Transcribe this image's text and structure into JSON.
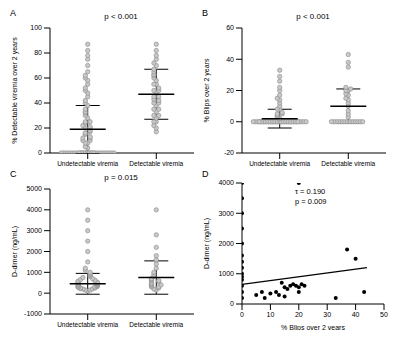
{
  "chart_data": [
    {
      "type": "scatter",
      "panel": "A",
      "title": "p < 0.001",
      "categories": [
        "Undetectable viremia",
        "Detectable viremia"
      ],
      "y_label": "% Detectable viremia over 2 years",
      "ylim": [
        0,
        100
      ],
      "yticks": [
        0,
        20,
        40,
        60,
        80,
        100
      ],
      "color": "#c8c8c8",
      "values": [
        [
          0,
          0,
          0,
          0,
          0,
          0,
          0,
          0,
          0,
          0,
          0,
          0,
          0,
          0,
          0,
          0,
          0,
          0,
          0,
          0,
          0,
          0,
          0,
          0,
          0,
          0,
          0,
          0,
          0,
          0,
          4,
          5,
          8,
          8,
          10,
          10,
          12,
          12,
          13,
          15,
          16,
          17,
          18,
          20,
          20,
          21,
          22,
          24,
          25,
          25,
          28,
          30,
          32,
          33,
          35,
          38,
          40,
          42,
          45,
          48,
          50,
          52,
          55,
          58,
          60,
          62,
          65,
          70,
          75,
          78,
          82,
          87
        ],
        [
          17,
          20,
          22,
          25,
          25,
          28,
          30,
          30,
          33,
          35,
          35,
          38,
          40,
          40,
          42,
          43,
          45,
          45,
          48,
          50,
          50,
          52,
          55,
          55,
          58,
          60,
          62,
          63,
          65,
          67,
          70,
          72,
          75,
          78,
          82,
          87
        ]
      ],
      "mean": [
        19,
        47
      ],
      "sd": [
        19,
        20
      ]
    },
    {
      "type": "scatter",
      "panel": "B",
      "title": "p < 0.001",
      "categories": [
        "Undetectable viremia",
        "Detectable viremia"
      ],
      "y_label": "% Blips over 2 years",
      "ylim": [
        -20,
        60
      ],
      "yticks": [
        -20,
        0,
        20,
        40,
        60
      ],
      "color": "#c8c8c8",
      "values": [
        [
          0,
          0,
          0,
          0,
          0,
          0,
          0,
          0,
          0,
          0,
          0,
          0,
          0,
          0,
          0,
          0,
          0,
          0,
          0,
          0,
          0,
          0,
          0,
          0,
          0,
          0,
          0,
          0,
          0,
          0,
          0,
          0,
          0,
          0,
          0,
          0,
          0,
          0,
          0,
          0,
          2,
          3,
          4,
          5,
          5,
          6,
          8,
          8,
          10,
          12,
          14,
          15,
          17,
          20,
          22,
          26,
          29,
          33
        ],
        [
          0,
          0,
          0,
          0,
          0,
          0,
          0,
          0,
          0,
          0,
          0,
          0,
          0,
          0,
          3,
          5,
          7,
          10,
          12,
          14,
          15,
          17,
          18,
          20,
          20,
          21,
          22,
          35,
          38,
          43
        ]
      ],
      "mean": [
        2,
        10
      ],
      "sd": [
        6,
        11
      ]
    },
    {
      "type": "scatter",
      "panel": "C",
      "title": "p = 0.015",
      "categories": [
        "Undetectable viremia",
        "Detectable viremia"
      ],
      "y_label": "D-dimer (ng/mL)",
      "ylim": [
        -1000,
        5000
      ],
      "yticks": [
        -1000,
        0,
        1000,
        2000,
        3000,
        4000,
        5000
      ],
      "color": "#c8c8c8",
      "values": [
        [
          100,
          150,
          150,
          200,
          200,
          220,
          250,
          250,
          280,
          300,
          300,
          320,
          350,
          350,
          380,
          400,
          400,
          420,
          450,
          450,
          480,
          500,
          500,
          520,
          550,
          580,
          600,
          620,
          650,
          700,
          750,
          800,
          850,
          900,
          950,
          1000,
          1100,
          1200,
          1500,
          2000,
          2500,
          3000,
          3500,
          4000
        ],
        [
          150,
          200,
          250,
          300,
          300,
          350,
          400,
          400,
          450,
          500,
          550,
          600,
          600,
          650,
          700,
          800,
          900,
          1000,
          1200,
          1400,
          1600,
          1800,
          2200,
          2800,
          4000
        ]
      ],
      "mean": [
        450,
        750
      ],
      "sd": [
        500,
        800
      ]
    },
    {
      "type": "scatter",
      "panel": "D",
      "x_label": "% Blips over 2 years",
      "y_label": "D-dimer (ng/mL)",
      "xlim": [
        0,
        50
      ],
      "xticks": [
        0,
        10,
        20,
        30,
        40,
        50
      ],
      "ylim": [
        0,
        4000
      ],
      "yticks": [
        0,
        1000,
        2000,
        3000,
        4000
      ],
      "color": "#000000",
      "annotations": [
        "τ = 0.190",
        "p = 0.009"
      ],
      "x": [
        0,
        0,
        0,
        0,
        0,
        0,
        0,
        0,
        0,
        0,
        0,
        0,
        0,
        0,
        5,
        7,
        8,
        10,
        12,
        13,
        14,
        15,
        15,
        16,
        17,
        18,
        19,
        20,
        20,
        20,
        21,
        22,
        33,
        37,
        40,
        43
      ],
      "y": [
        4000,
        3500,
        3000,
        2500,
        2000,
        1600,
        1400,
        1200,
        1000,
        900,
        800,
        600,
        400,
        200,
        300,
        400,
        200,
        350,
        400,
        300,
        700,
        550,
        250,
        500,
        600,
        650,
        600,
        4000,
        550,
        400,
        650,
        600,
        200,
        1800,
        1500,
        400
      ],
      "trend": {
        "x": [
          0,
          44
        ],
        "y": [
          650,
          1200
        ]
      }
    }
  ]
}
